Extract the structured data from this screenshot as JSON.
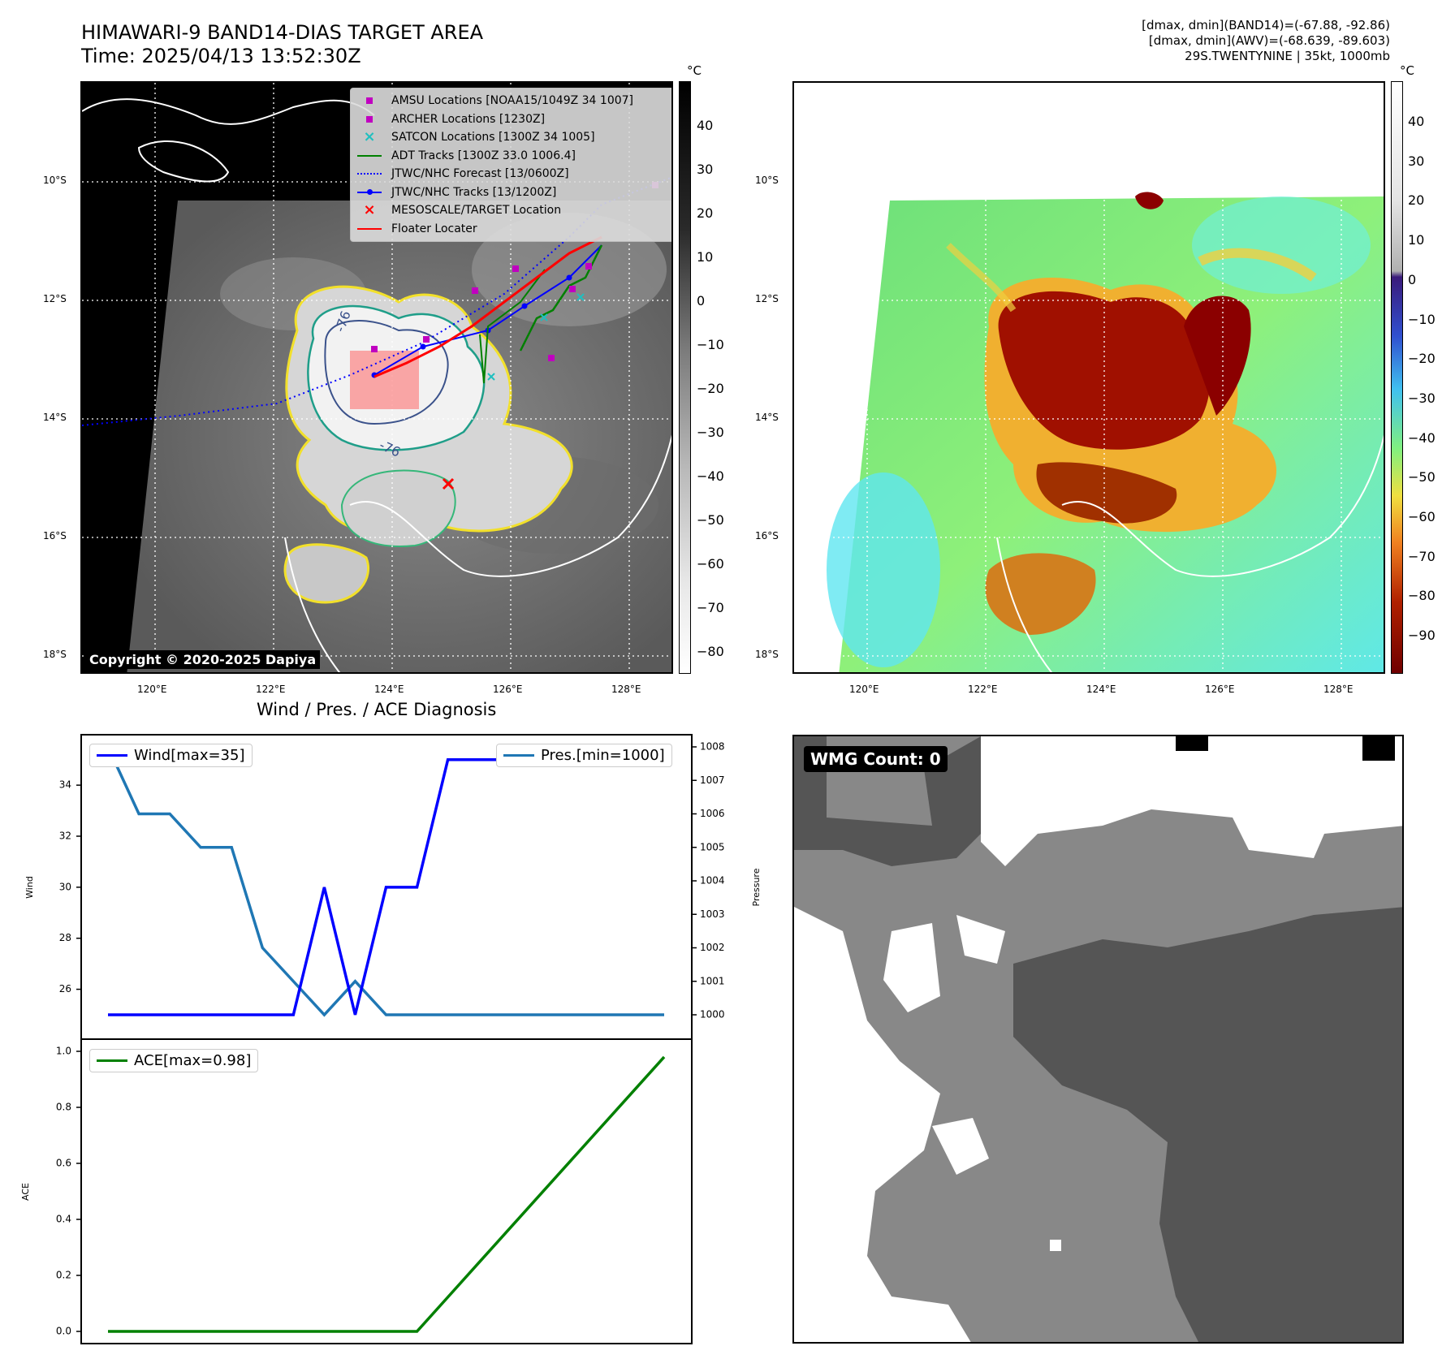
{
  "header": {
    "title_line1": "HIMAWARI-9 BAND14-DIAS TARGET AREA",
    "title_line2": "Time: 2025/04/13 13:52:30Z",
    "right_line1": "[dmax, dmin](BAND14)=(-67.88, -92.86)",
    "right_line2": "[dmax, dmin](AWV)=(-68.639, -89.603)",
    "right_line3": "29S.TWENTYNINE | 35kt, 1000mb"
  },
  "map": {
    "lat_labels": [
      "10°S",
      "12°S",
      "14°S",
      "16°S",
      "18°S"
    ],
    "lon_labels": [
      "120°E",
      "122°E",
      "124°E",
      "126°E",
      "128°E"
    ],
    "contour_labels": [
      "-76",
      "-76"
    ],
    "copyright": "Copyright © 2020-2025 Dapiya",
    "legend": [
      {
        "label": "AMSU Locations [NOAA15/1049Z 34 1007]",
        "marker": "square",
        "color": "#c000c0"
      },
      {
        "label": "ARCHER Locations [1230Z]",
        "marker": "square",
        "color": "#c000c0"
      },
      {
        "label": "SATCON Locations [1300Z 34 1005]",
        "marker": "x",
        "color": "#1fbfbf"
      },
      {
        "label": "ADT Tracks [1300Z 33.0 1006.4]",
        "marker": "line",
        "color": "#008000"
      },
      {
        "label": "JTWC/NHC Forecast [13/0600Z]",
        "marker": "dotted",
        "color": "#0000ff"
      },
      {
        "label": "JTWC/NHC Tracks [13/1200Z]",
        "marker": "line-dot",
        "color": "#0000ff"
      },
      {
        "label": "MESOSCALE/TARGET Location",
        "marker": "x",
        "color": "#ff0000"
      },
      {
        "label": "Floater Locater",
        "marker": "line",
        "color": "#ff0000"
      }
    ],
    "colorbar_gray": {
      "unit": "°C",
      "ticks": [
        "40",
        "30",
        "20",
        "10",
        "0",
        "−10",
        "−20",
        "−30",
        "−40",
        "−50",
        "−60",
        "−70",
        "−80"
      ]
    },
    "colorbar_color": {
      "unit": "°C",
      "ticks": [
        "40",
        "30",
        "20",
        "10",
        "0",
        "−10",
        "−20",
        "−30",
        "−40",
        "−50",
        "−60",
        "−70",
        "−80",
        "−90"
      ]
    }
  },
  "diagnosis": {
    "title": "Wind / Pres. / ACE Diagnosis",
    "wind_ylabel": "Wind",
    "pres_ylabel": "Pressure",
    "ace_ylabel": "ACE",
    "wind_legend": "Wind[max=35]",
    "pres_legend": "Pres.[min=1000]",
    "ace_legend": "ACE[max=0.98]",
    "wind_ticks": [
      "26",
      "28",
      "30",
      "32",
      "34"
    ],
    "pres_ticks": [
      "1000",
      "1001",
      "1002",
      "1003",
      "1004",
      "1005",
      "1006",
      "1007",
      "1008"
    ],
    "ace_ticks": [
      "0.0",
      "0.2",
      "0.4",
      "0.6",
      "0.8",
      "1.0"
    ]
  },
  "wmg": {
    "label": "WMG Count: 0"
  },
  "chart_data": [
    {
      "type": "line",
      "title": "Wind / Pres. / ACE Diagnosis",
      "ylabel": "Wind",
      "ylim": [
        25,
        35.5
      ],
      "series": [
        {
          "name": "Wind[max=35]",
          "color": "#0000ff",
          "values": [
            25,
            25,
            25,
            25,
            25,
            25,
            25,
            30,
            25,
            30,
            30,
            35,
            35,
            35,
            35,
            35,
            35,
            35,
            35
          ]
        }
      ]
    },
    {
      "type": "line",
      "ylabel": "Pressure",
      "ylim": [
        999.8,
        1008.3
      ],
      "series": [
        {
          "name": "Pres.[min=1000]",
          "color": "#1f77b4",
          "values": [
            1008,
            1006,
            1006,
            1005,
            1005,
            1002,
            1001,
            1000,
            1001,
            1000,
            1000,
            1000,
            1000,
            1000,
            1000,
            1000,
            1000,
            1000,
            1000
          ]
        }
      ]
    },
    {
      "type": "line",
      "ylabel": "ACE",
      "ylim": [
        -0.05,
        1.0
      ],
      "series": [
        {
          "name": "ACE[max=0.98]",
          "color": "#008000",
          "values": [
            0,
            0,
            0,
            0,
            0,
            0,
            0,
            0,
            0,
            0,
            0,
            0.1225,
            0.245,
            0.3675,
            0.49,
            0.6125,
            0.735,
            0.8575,
            0.98
          ]
        }
      ]
    }
  ]
}
